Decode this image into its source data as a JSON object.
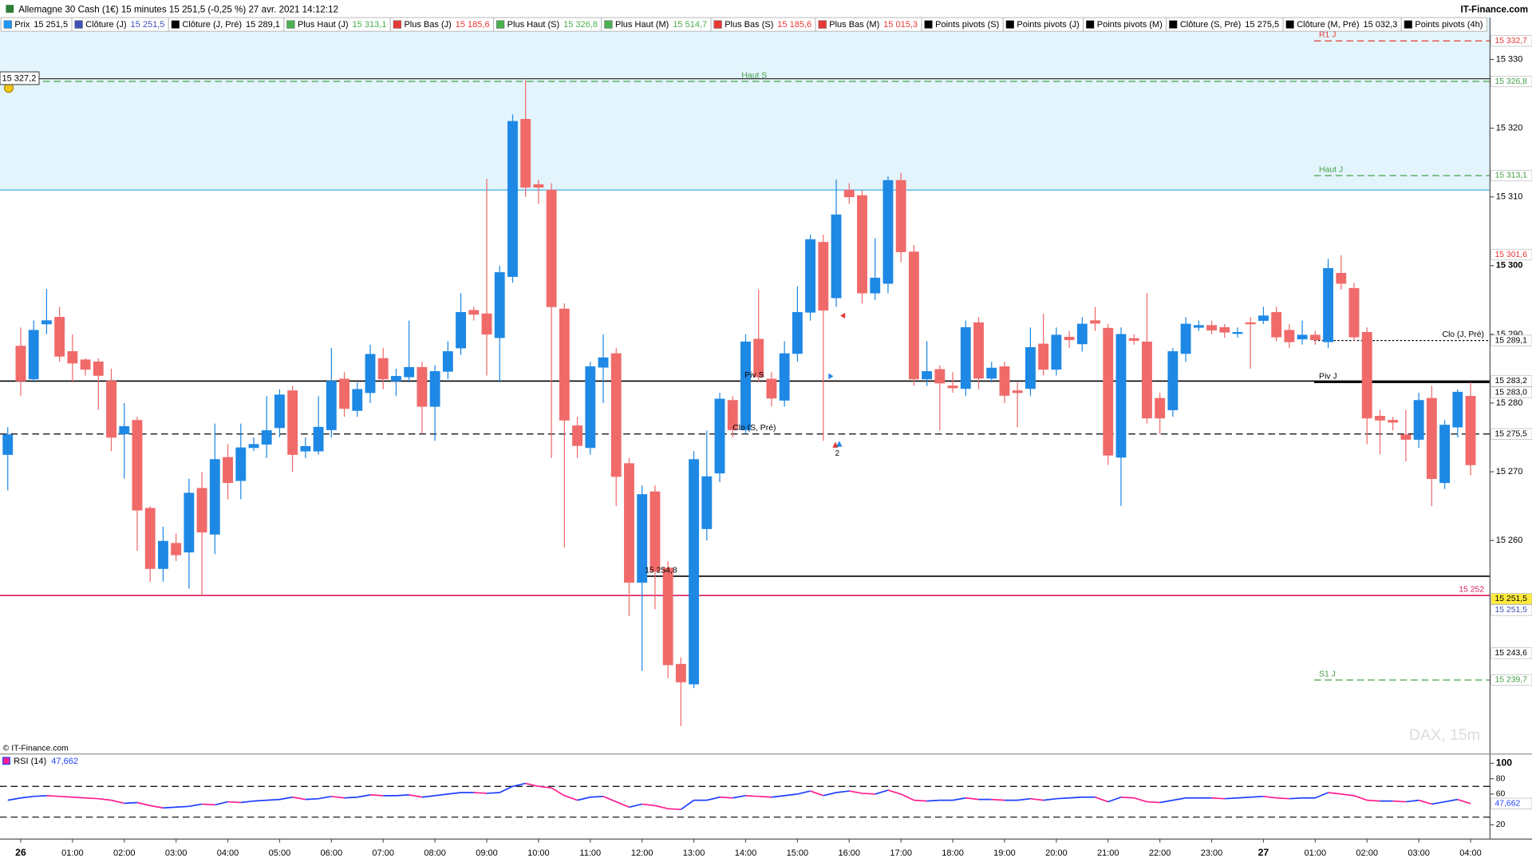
{
  "header": {
    "title": "Allemagne 30 Cash (1€) 15 minutes 15 251,5 (-0,25 %) 27 avr. 2021 14:12:12",
    "brand": "IT-Finance.com"
  },
  "indicators": [
    {
      "name": "Prix",
      "value": "15 251,5",
      "icon": "#2196f3",
      "value_color": "#000000"
    },
    {
      "name": "Clôture (J)",
      "value": "15 251,5",
      "icon": "#3f51b5",
      "value_color": "#3f51b5"
    },
    {
      "name": "Clôture (J, Pré)",
      "value": "15 289,1",
      "icon": "#000000",
      "value_color": "#000000"
    },
    {
      "name": "Plus Haut (J)",
      "value": "15 313,1",
      "icon": "#4caf50",
      "value_color": "#4caf50"
    },
    {
      "name": "Plus Bas (J)",
      "value": "15 185,6",
      "icon": "#e53935",
      "value_color": "#e53935"
    },
    {
      "name": "Plus Haut (S)",
      "value": "15 326,8",
      "icon": "#4caf50",
      "value_color": "#4caf50"
    },
    {
      "name": "Plus Haut (M)",
      "value": "15 514,7",
      "icon": "#4caf50",
      "value_color": "#4caf50"
    },
    {
      "name": "Plus Bas (S)",
      "value": "15 185,6",
      "icon": "#e53935",
      "value_color": "#e53935"
    },
    {
      "name": "Plus Bas (M)",
      "value": "15 015,3",
      "icon": "#e53935",
      "value_color": "#e53935"
    },
    {
      "name": "Points pivots (S)",
      "icon": "#000000"
    },
    {
      "name": "Points pivots (J)",
      "icon": "#000000"
    },
    {
      "name": "Points pivots (M)",
      "icon": "#000000"
    },
    {
      "name": "Clôture (S, Pré)",
      "value": "15 275,5",
      "icon": "#000000",
      "value_color": "#000000"
    },
    {
      "name": "Clôture (M, Pré)",
      "value": "15 032,3",
      "icon": "#000000",
      "value_color": "#000000"
    },
    {
      "name": "Points pivots (4h)",
      "icon": "#000000"
    }
  ],
  "chart_data": {
    "type": "candlestick",
    "up_color": "#1e88e5",
    "down_color": "#f06a6a",
    "open": [
      15272.5,
      15288.3,
      15283.5,
      15291.5,
      15292.5,
      15287.5,
      15286.3,
      15286.0,
      15283.2,
      15275.5,
      15277.5,
      15264.7,
      15255.9,
      15259.6,
      15258.3,
      15267.6,
      15260.9,
      15272.1,
      15268.7,
      15273.5,
      15274.0,
      15276.4,
      15281.8,
      15273.0,
      15273.0,
      15276.1,
      15283.5,
      15278.9,
      15281.5,
      15286.5,
      15283.2,
      15283.8,
      15285.2,
      15279.5,
      15284.6,
      15288.0,
      15293.5,
      15293.0,
      15289.5,
      15298.4,
      15321.3,
      15311.8,
      15311.0,
      15293.7,
      15276.7,
      15273.5,
      15285.2,
      15287.2,
      15271.2,
      15253.9,
      15267.1,
      15256.0,
      15242.0,
      15239.1,
      15261.7,
      15269.8,
      15280.4,
      15276.1,
      15289.3,
      15283.5,
      15280.4,
      15287.2,
      15293.2,
      15303.4,
      15295.3,
      15311.0,
      15310.2,
      15296.0,
      15297.4,
      15312.4,
      15302.0,
      15283.5,
      15284.9,
      15282.5,
      15282.1,
      15291.7,
      15283.6,
      15285.3,
      15281.8,
      15282.1,
      15288.6,
      15284.9,
      15289.6,
      15288.6,
      15292.0,
      15290.9,
      15272.1,
      15289.4,
      15288.9,
      15280.7,
      15279.0,
      15287.2,
      15291.0,
      15291.3,
      15291.0,
      15290.1,
      15291.7,
      15292.0,
      15293.2,
      15290.6,
      15289.3,
      15289.9,
      15288.9,
      15298.9,
      15296.7,
      15290.3,
      15278.1,
      15277.5,
      15275.4,
      15274.7,
      15280.7,
      15268.4,
      15276.5,
      15281.0
    ],
    "high": [
      15276.5,
      15291.0,
      15292.0,
      15296.6,
      15294.0,
      15290.0,
      15286.5,
      15286.5,
      15285.0,
      15280.0,
      15278.0,
      15265.0,
      15262.0,
      15261.0,
      15269.0,
      15270.0,
      15277.0,
      15274.0,
      15277.0,
      15275.0,
      15281.0,
      15282.0,
      15282.5,
      15275.0,
      15281.0,
      15288.0,
      15284.5,
      15283.0,
      15288.5,
      15288.0,
      15285.0,
      15292.0,
      15286.0,
      15285.5,
      15289.0,
      15296.0,
      15294.0,
      15312.6,
      15300.0,
      15322.0,
      15327.0,
      15312.5,
      15312.0,
      15294.5,
      15278.0,
      15286.0,
      15290.0,
      15288.0,
      15272.0,
      15268.0,
      15268.0,
      15257.0,
      15243.0,
      15273.0,
      15276.0,
      15281.5,
      15281.0,
      15290.0,
      15296.5,
      15284.5,
      15289.0,
      15297.0,
      15304.5,
      15304.5,
      15312.5,
      15312.0,
      15311.0,
      15304.0,
      15313.0,
      15313.5,
      15303.0,
      15289.0,
      15285.5,
      15284.5,
      15292.0,
      15292.5,
      15286.0,
      15286.0,
      15283.0,
      15291.0,
      15293.0,
      15291.0,
      15290.5,
      15292.5,
      15294.0,
      15291.5,
      15291.0,
      15290.0,
      15296.0,
      15281.5,
      15288.0,
      15292.5,
      15292.0,
      15292.0,
      15291.5,
      15291.0,
      15292.5,
      15294.0,
      15294.0,
      15291.5,
      15292.0,
      15290.5,
      15301.0,
      15301.5,
      15297.5,
      15291.0,
      15279.0,
      15278.0,
      15279.0,
      15281.5,
      15282.5,
      15277.5,
      15282.0,
      15283.0
    ],
    "low": [
      15267.3,
      15281.0,
      15283.0,
      15290.0,
      15286.0,
      15283.0,
      15284.0,
      15279.0,
      15273.0,
      15269.0,
      15258.5,
      15254.0,
      15254.0,
      15257.0,
      15253.0,
      15252.0,
      15258.0,
      15266.0,
      15266.0,
      15273.0,
      15272.0,
      15275.0,
      15270.0,
      15272.0,
      15272.5,
      15275.0,
      15278.0,
      15278.0,
      15280.0,
      15282.0,
      15281.0,
      15283.0,
      15275.5,
      15274.5,
      15283.5,
      15287.0,
      15292.0,
      15284.0,
      15283.0,
      15297.5,
      15310.0,
      15309.0,
      15272.0,
      15259.0,
      15272.0,
      15272.5,
      15280.0,
      15265.0,
      15249.0,
      15241.0,
      15250.0,
      15240.0,
      15233.0,
      15238.5,
      15260.0,
      15268.5,
      15275.0,
      15275.5,
      15283.0,
      15279.5,
      15279.5,
      15286.0,
      15292.0,
      15274.5,
      15294.0,
      15309.0,
      15294.5,
      15295.0,
      15296.0,
      15300.5,
      15282.5,
      15282.5,
      15276.0,
      15281.5,
      15281.0,
      15282.0,
      15283.0,
      15280.0,
      15276.5,
      15281.0,
      15284.0,
      15284.0,
      15288.0,
      15287.5,
      15290.5,
      15271.0,
      15265.0,
      15288.5,
      15277.0,
      15275.5,
      15278.0,
      15286.0,
      15290.5,
      15290.0,
      15289.5,
      15289.5,
      15285.0,
      15291.5,
      15289.0,
      15288.0,
      15288.5,
      15288.5,
      15288.0,
      15296.5,
      15289.0,
      15274.0,
      15272.5,
      15276.0,
      15271.5,
      15273.5,
      15265.0,
      15267.5,
      15275.0,
      15269.5
    ],
    "close": [
      15275.4,
      15283.2,
      15290.6,
      15292.0,
      15286.8,
      15285.8,
      15284.9,
      15284.0,
      15275.0,
      15276.6,
      15264.4,
      15255.9,
      15259.9,
      15257.9,
      15266.9,
      15261.2,
      15271.8,
      15268.4,
      15273.5,
      15274.0,
      15276.0,
      15281.2,
      15272.5,
      15273.7,
      15276.5,
      15283.2,
      15279.2,
      15282.0,
      15287.1,
      15283.5,
      15283.9,
      15285.2,
      15279.5,
      15284.6,
      15287.5,
      15293.2,
      15292.9,
      15290.0,
      15299.0,
      15321.0,
      15311.4,
      15311.4,
      15294.0,
      15277.5,
      15273.8,
      15285.3,
      15286.6,
      15269.3,
      15253.9,
      15266.7,
      15255.5,
      15241.9,
      15239.4,
      15271.8,
      15269.3,
      15280.6,
      15276.1,
      15288.9,
      15283.8,
      15280.7,
      15287.2,
      15293.2,
      15303.8,
      15293.5,
      15307.4,
      15310.0,
      15296.0,
      15298.2,
      15312.4,
      15302.0,
      15283.5,
      15284.6,
      15282.9,
      15282.2,
      15291.0,
      15283.6,
      15285.1,
      15281.1,
      15281.5,
      15288.1,
      15284.9,
      15289.9,
      15289.2,
      15291.5,
      15291.6,
      15272.4,
      15290.0,
      15289.1,
      15277.8,
      15277.8,
      15287.5,
      15291.5,
      15291.3,
      15290.6,
      15290.3,
      15290.3,
      15291.5,
      15292.7,
      15289.6,
      15288.9,
      15289.9,
      15289.2,
      15299.6,
      15297.4,
      15289.6,
      15277.8,
      15277.5,
      15277.2,
      15274.7,
      15280.4,
      15269.0,
      15276.8,
      15281.6,
      15271.0
    ],
    "xlim": [
      -0.6,
      114.5
    ],
    "ylim": [
      15229.0,
      15334.1
    ],
    "xticks": [
      {
        "value": 1,
        "label": "26"
      },
      {
        "value": 5,
        "label": "01:00"
      },
      {
        "value": 9,
        "label": "02:00"
      },
      {
        "value": 13,
        "label": "03:00"
      },
      {
        "value": 17,
        "label": "04:00"
      },
      {
        "value": 21,
        "label": "05:00"
      },
      {
        "value": 25,
        "label": "06:00"
      },
      {
        "value": 29,
        "label": "07:00"
      },
      {
        "value": 33,
        "label": "08:00"
      },
      {
        "value": 37,
        "label": "09:00"
      },
      {
        "value": 41,
        "label": "10:00"
      },
      {
        "value": 45,
        "label": "11:00"
      },
      {
        "value": 49,
        "label": "12:00"
      },
      {
        "value": 53,
        "label": "13:00"
      },
      {
        "value": 57,
        "label": "14:00"
      },
      {
        "value": 61,
        "label": "15:00"
      },
      {
        "value": 65,
        "label": "16:00"
      },
      {
        "value": 69,
        "label": "17:00"
      },
      {
        "value": 73,
        "label": "18:00"
      },
      {
        "value": 77,
        "label": "19:00"
      },
      {
        "value": 81,
        "label": "20:00"
      },
      {
        "value": 85,
        "label": "21:00"
      },
      {
        "value": 89,
        "label": "22:00"
      },
      {
        "value": 93,
        "label": "23:00"
      },
      {
        "value": 97,
        "label": "27"
      },
      {
        "value": 101,
        "label": "01:00"
      },
      {
        "value": 105,
        "label": "02:00"
      },
      {
        "value": 109,
        "label": "03:00"
      },
      {
        "value": 113,
        "label": "04:00"
      }
    ],
    "yticks": [
      {
        "value": 15260,
        "label": "15 260"
      },
      {
        "value": 15270,
        "label": "15 270"
      },
      {
        "value": 15280,
        "label": "15 280"
      },
      {
        "value": 15290,
        "label": "15 290"
      },
      {
        "value": 15300,
        "label": "15 300"
      },
      {
        "value": 15310,
        "label": "15 310"
      },
      {
        "value": 15320,
        "label": "15 320"
      },
      {
        "value": 15330,
        "label": "15 330"
      }
    ],
    "zone": {
      "value": 15311.0,
      "color": "#e3f4fc",
      "line_color": "#29a9e6"
    },
    "cursor": {
      "value": 15327.2,
      "label": "15 327,2",
      "color": "#333333"
    },
    "levels": [
      {
        "name": "R1 J",
        "value": 15332.7,
        "label": "15 332,7",
        "color": "#e53935",
        "style": "dashed",
        "span": "day"
      },
      {
        "name": "Haut S",
        "value": 15326.8,
        "label": "15 326,8",
        "color": "#43a047",
        "style": "dashed",
        "span": "full"
      },
      {
        "name": "Haut J",
        "value": 15313.1,
        "label": "15 313,1",
        "color": "#43a047",
        "style": "dashed",
        "span": "day"
      },
      {
        "value": 15301.6,
        "label": "15 301,6",
        "color": "#e53935",
        "style": "none"
      },
      {
        "name": "Clo (J, Pré)",
        "value": 15289.1,
        "label": "15 289,1",
        "color": "#000000",
        "style": "dotted",
        "span": "day",
        "label_align": "end"
      },
      {
        "name": "Piv S",
        "value": 15283.2,
        "label": "15 283,2",
        "color": "#000000",
        "style": "solid",
        "span": "full"
      },
      {
        "name": "Piv J",
        "value": 15283.0,
        "label": "15 283,0",
        "color": "#000000",
        "style": "solid",
        "span": "day"
      },
      {
        "name": "Clo (S, Pré)",
        "value": 15275.5,
        "label": "15 275,5",
        "color": "#000000",
        "style": "dashed",
        "span": "full"
      },
      {
        "name": "15 254,8",
        "value": 15254.8,
        "color": "#000000",
        "style": "solid",
        "span": "partial"
      },
      {
        "value": 15251.5,
        "label": "15 251,5",
        "color": "#000000",
        "bg": "#ffeb3b",
        "style": "none"
      },
      {
        "name": "15 252",
        "value": 15252,
        "color": "#d81b60",
        "style": "solid",
        "span": "full",
        "label_align": "end"
      },
      {
        "value": 15251.5,
        "label": "15 251,5",
        "color": "#3f51b5",
        "style": "none"
      },
      {
        "value": 15243.6,
        "label": "15 243,6",
        "color": "#000000",
        "style": "none"
      },
      {
        "name": "S1 J",
        "value": 15239.7,
        "label": "15 239,7",
        "color": "#43a047",
        "style": "dashed",
        "span": "day"
      }
    ],
    "signal": "2",
    "watermark": "DAX, 15m",
    "copyright": "© IT-Finance.com"
  },
  "rsi": {
    "type": "line",
    "name": "RSI (14)",
    "value_label": "47,662",
    "colors": [
      "#1f3fff",
      "#ff1f8f"
    ],
    "values": [
      52,
      55,
      57,
      58,
      57,
      56,
      55,
      54,
      52,
      48,
      49,
      45,
      42,
      43,
      44,
      47,
      46,
      50,
      49,
      51,
      52,
      53,
      56,
      53,
      54,
      57,
      55,
      56,
      59,
      58,
      58,
      59,
      56,
      58,
      60,
      62,
      62,
      61,
      62,
      70,
      74,
      70,
      68,
      58,
      52,
      56,
      57,
      50,
      43,
      47,
      45,
      41,
      40,
      52,
      52,
      56,
      55,
      58,
      57,
      56,
      58,
      60,
      64,
      58,
      62,
      64,
      61,
      60,
      65,
      60,
      52,
      51,
      52,
      52,
      55,
      53,
      53,
      52,
      52,
      54,
      52,
      54,
      55,
      56,
      56,
      50,
      56,
      55,
      50,
      49,
      52,
      55,
      55,
      55,
      54,
      55,
      56,
      57,
      55,
      54,
      55,
      55,
      62,
      60,
      58,
      52,
      51,
      51,
      50,
      52,
      47,
      50,
      53,
      47.662
    ],
    "ylim": [
      2.2,
      110.2
    ],
    "yticks": [
      20,
      60,
      80,
      100
    ],
    "levels": [
      30,
      70
    ]
  }
}
